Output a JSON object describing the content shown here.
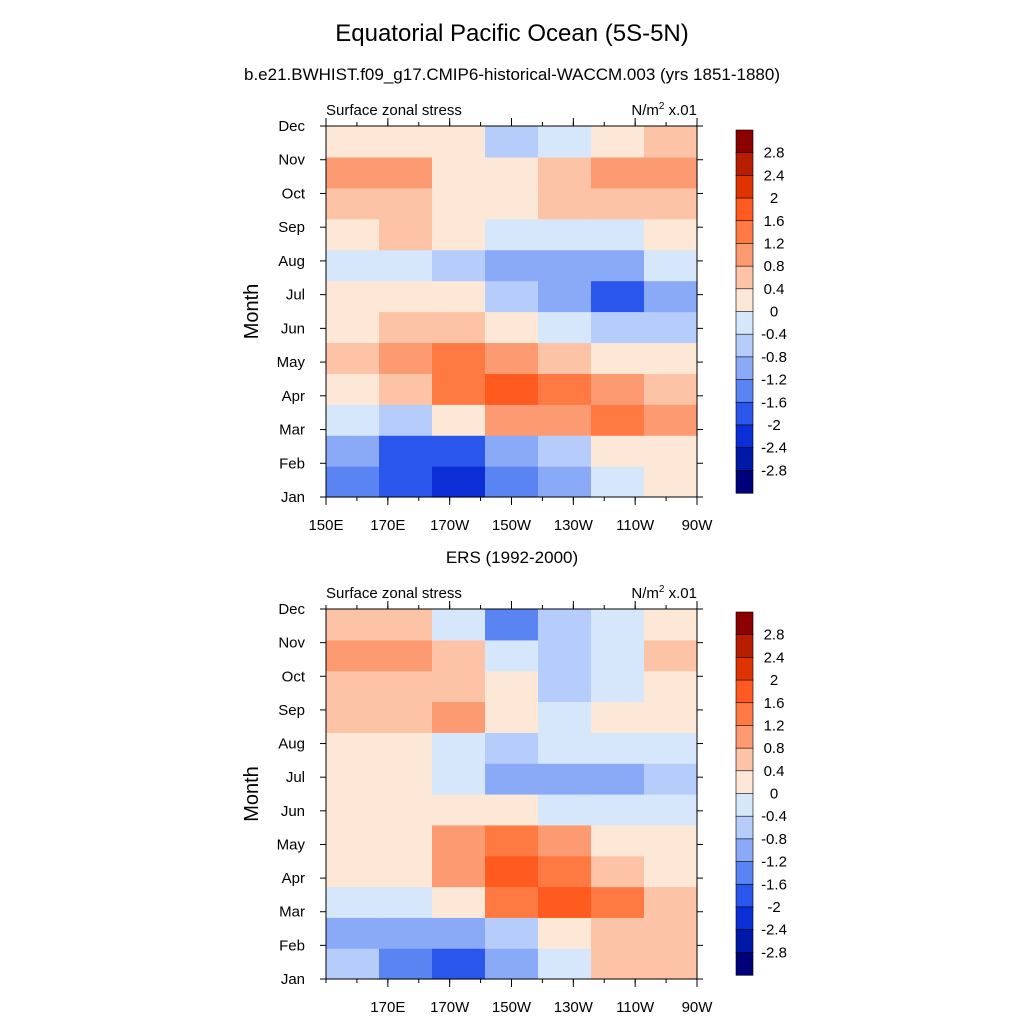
{
  "title": "Equatorial Pacific Ocean (5S-5N)",
  "subtitle": "b.e21.BWHIST.f09_g17.CMIP6-historical-WACCM.003 (yrs 1851-1880)",
  "colorbar": {
    "levels": [
      "2.8",
      "2.4",
      "2",
      "1.6",
      "1.2",
      "0.8",
      "0.4",
      "0",
      "-0.4",
      "-0.8",
      "-1.2",
      "-1.6",
      "-2",
      "-2.4",
      "-2.8"
    ],
    "colors": [
      "#8b0000",
      "#b81d00",
      "#e03400",
      "#ff5a1f",
      "#ff7a42",
      "#fc9a72",
      "#fcc3a6",
      "#fde8d8",
      "#d7e7fb",
      "#b6ccfb",
      "#8aa9f7",
      "#5a84f2",
      "#2a56eb",
      "#0c2ed6",
      "#0018a6",
      "#00007a"
    ]
  },
  "chart_data": [
    {
      "type": "heatmap",
      "panel_title": "",
      "left_label": "Surface zonal stress",
      "units": {
        "base": "N/m",
        "sup": "2",
        "suffix": " x.01"
      },
      "ylabel": "Month",
      "y_ticks": [
        "Jan",
        "Feb",
        "Mar",
        "Apr",
        "May",
        "Jun",
        "Jul",
        "Aug",
        "Sep",
        "Oct",
        "Nov",
        "Dec"
      ],
      "x_ticks": [
        "150E",
        "170E",
        "170W",
        "150W",
        "130W",
        "110W",
        "90W"
      ],
      "xlim": [
        150,
        270
      ],
      "values": [
        [
          -1.4,
          -2.0,
          -2.2,
          -1.6,
          -1.0,
          -0.2,
          0.2
        ],
        [
          -1.2,
          -2.0,
          -1.8,
          -1.2,
          -0.6,
          0.0,
          0.2
        ],
        [
          -0.4,
          -0.8,
          0.0,
          0.8,
          1.0,
          1.2,
          1.0
        ],
        [
          0.2,
          0.4,
          1.4,
          1.8,
          1.2,
          0.8,
          0.4
        ],
        [
          0.4,
          0.8,
          1.4,
          1.0,
          0.4,
          0.2,
          0.0
        ],
        [
          0.2,
          0.4,
          0.4,
          0.2,
          -0.4,
          -0.8,
          -0.6
        ],
        [
          0.0,
          0.2,
          0.0,
          -0.6,
          -1.2,
          -2.0,
          -1.2
        ],
        [
          -0.2,
          -0.2,
          -0.8,
          -1.0,
          -1.0,
          -1.2,
          -0.4
        ],
        [
          0.2,
          0.4,
          0.0,
          -0.2,
          -0.2,
          -0.2,
          0.2
        ],
        [
          0.6,
          0.6,
          0.2,
          0.2,
          0.4,
          0.6,
          0.6
        ],
        [
          1.0,
          0.8,
          0.2,
          0.0,
          0.4,
          1.0,
          0.8
        ],
        [
          0.2,
          0.2,
          0.0,
          -0.6,
          -0.4,
          0.2,
          0.4
        ]
      ]
    },
    {
      "type": "heatmap",
      "panel_title": "ERS (1992-2000)",
      "left_label": "Surface zonal stress",
      "units": {
        "base": "N/m",
        "sup": "2",
        "suffix": " x.01"
      },
      "ylabel": "Month",
      "y_ticks": [
        "Jan",
        "Feb",
        "Mar",
        "Apr",
        "May",
        "Jun",
        "Jul",
        "Aug",
        "Sep",
        "Oct",
        "Nov",
        "Dec"
      ],
      "x_ticks": [
        "170E",
        "170W",
        "150W",
        "130W",
        "110W",
        "90W"
      ],
      "xlim": [
        150,
        270
      ],
      "values": [
        [
          -0.6,
          -1.4,
          -1.8,
          -1.0,
          -0.2,
          0.4,
          0.4
        ],
        [
          -1.0,
          -1.2,
          -1.0,
          -0.6,
          0.0,
          0.6,
          0.4
        ],
        [
          -0.2,
          -0.4,
          0.0,
          1.2,
          1.6,
          1.2,
          0.6
        ],
        [
          0.0,
          0.2,
          0.8,
          1.6,
          1.2,
          0.6,
          0.2
        ],
        [
          0.2,
          0.2,
          0.8,
          1.4,
          0.8,
          0.2,
          0.0
        ],
        [
          0.0,
          0.2,
          0.2,
          0.0,
          -0.4,
          -0.4,
          -0.2
        ],
        [
          0.0,
          0.2,
          -0.4,
          -1.2,
          -1.2,
          -1.2,
          -0.6
        ],
        [
          0.2,
          0.2,
          -0.2,
          -0.6,
          -0.4,
          -0.4,
          -0.2
        ],
        [
          0.4,
          0.6,
          0.8,
          0.2,
          -0.2,
          0.0,
          0.2
        ],
        [
          0.6,
          0.6,
          0.6,
          0.0,
          -0.6,
          -0.2,
          0.2
        ],
        [
          0.8,
          0.8,
          0.4,
          -0.2,
          -0.6,
          -0.4,
          0.4
        ],
        [
          0.6,
          0.4,
          -0.4,
          -1.6,
          -0.8,
          -0.2,
          0.2
        ]
      ]
    }
  ]
}
